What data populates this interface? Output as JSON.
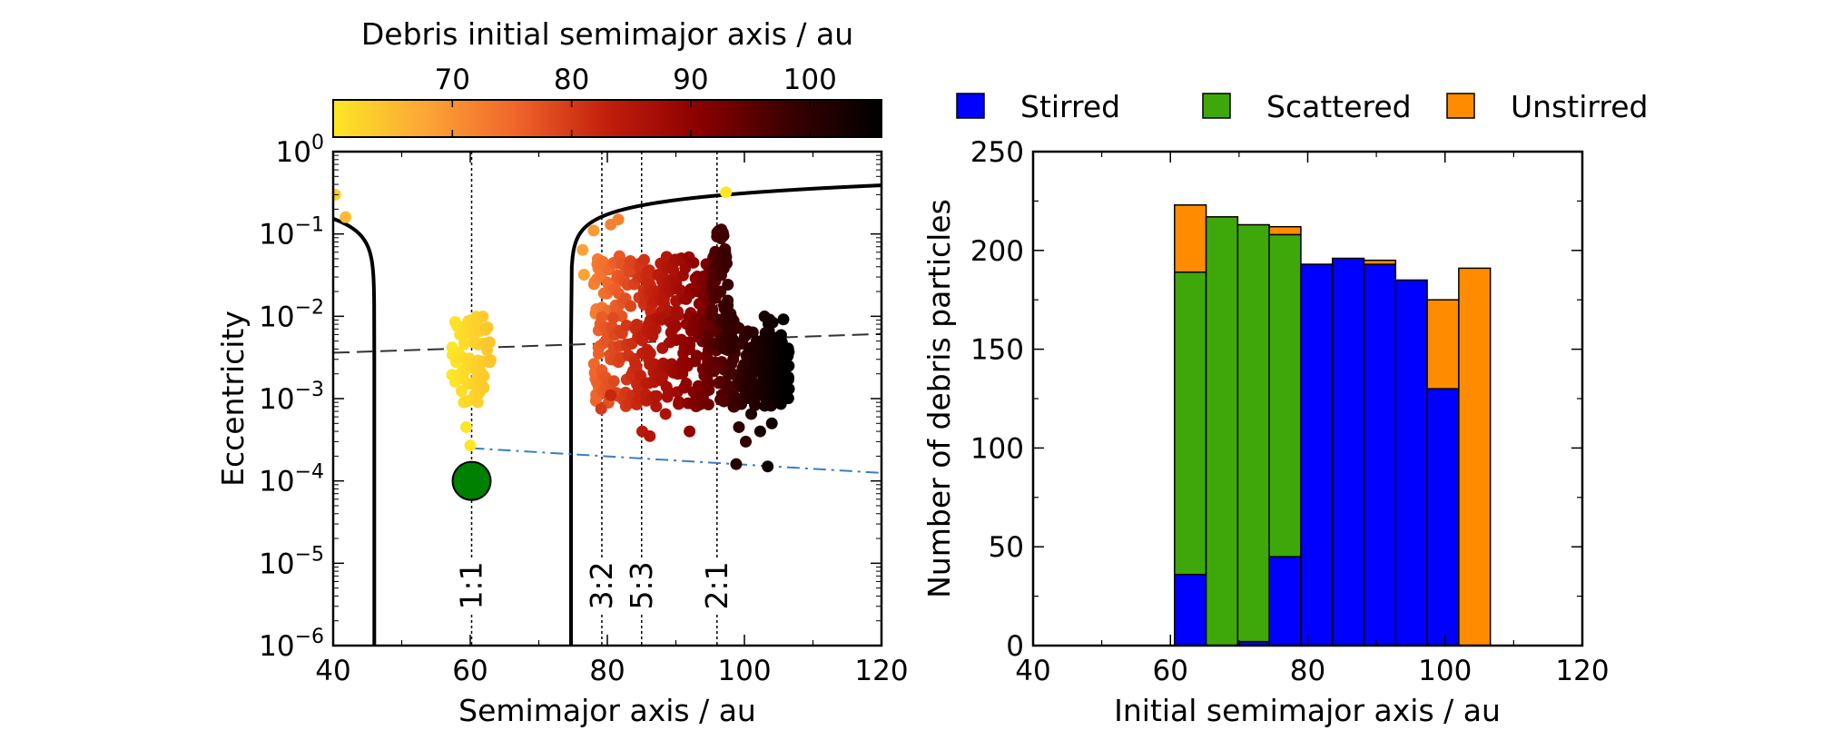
{
  "chart_data": [
    {
      "type": "scatter",
      "xlabel": "Semimajor axis / au",
      "ylabel": "Eccentricity",
      "xlim": [
        40,
        120
      ],
      "ylim": [
        1e-06,
        1
      ],
      "yscale": "log",
      "grid": false,
      "x_ticks": [
        {
          "value": 40,
          "label": "40"
        },
        {
          "value": 60,
          "label": "60"
        },
        {
          "value": 80,
          "label": "80"
        },
        {
          "value": 100,
          "label": "100"
        },
        {
          "value": 120,
          "label": "120"
        }
      ],
      "y_ticks": [
        {
          "value": 1e-06,
          "base": "10",
          "exp": "−6"
        },
        {
          "value": 1e-05,
          "base": "10",
          "exp": "−5"
        },
        {
          "value": 0.0001,
          "base": "10",
          "exp": "−4"
        },
        {
          "value": 0.001,
          "base": "10",
          "exp": "−3"
        },
        {
          "value": 0.01,
          "base": "10",
          "exp": "−2"
        },
        {
          "value": 0.1,
          "base": "10",
          "exp": "−1"
        },
        {
          "value": 1,
          "base": "10",
          "exp": "0"
        }
      ],
      "colorbar": {
        "label": "Debris initial semimajor axis / au",
        "range": [
          60,
          106
        ],
        "colormap": [
          "#fde725",
          "#fca636",
          "#f0652b",
          "#c21e0c",
          "#8b0000",
          "#3a0000",
          "#000000"
        ],
        "ticks": [
          {
            "value": 70,
            "label": "70"
          },
          {
            "value": 80,
            "label": "80"
          },
          {
            "value": 90,
            "label": "90"
          },
          {
            "value": 100,
            "label": "100"
          }
        ]
      },
      "resonances": [
        {
          "label": "1:1",
          "a": 60.2
        },
        {
          "label": "3:2",
          "a": 79.2
        },
        {
          "label": "5:3",
          "a": 85.0
        },
        {
          "label": "2:1",
          "a": 96.0
        }
      ],
      "planet": {
        "a": 60.2,
        "e": 0.0001,
        "color": "#008000"
      },
      "boundary_curves": {
        "left_asymptote": 46,
        "right_asymptote": 74.7,
        "color": "#000000"
      },
      "dashed_line": [
        [
          40,
          0.0036
        ],
        [
          120,
          0.0061
        ]
      ],
      "dashdot_line": {
        "points": [
          [
            60.2,
            0.00025
          ],
          [
            120,
            0.000125
          ]
        ],
        "color": "#3b7dbf"
      },
      "scatter_groups": [
        {
          "name": "trojans",
          "a_range": [
            57.3,
            63
          ],
          "e_log_range": [
            -3.05,
            -2.0
          ],
          "count": 80,
          "color_a": [
            60,
            64
          ]
        },
        {
          "name": "cloud_lower",
          "a_range": [
            78,
            106
          ],
          "e_log_range": [
            -3.1,
            -2.0
          ],
          "count": 320,
          "color_a": [
            75,
            106
          ]
        },
        {
          "name": "cloud_upper",
          "a_range": [
            78,
            96
          ],
          "e_log_range": [
            -2.0,
            -1.25
          ],
          "count": 160,
          "color_a": [
            72,
            94
          ]
        },
        {
          "name": "spike",
          "a_range": [
            94,
            98.5
          ],
          "e_log_range": [
            -2.4,
            -0.9
          ],
          "count": 70,
          "color_a": [
            94,
            100
          ]
        },
        {
          "name": "dense_right",
          "a_range": [
            100,
            106.5
          ],
          "e_log_range": [
            -3.0,
            -2.3
          ],
          "count": 150,
          "color_a": [
            100,
            106
          ]
        }
      ],
      "scatter_points": [
        {
          "a": 40.3,
          "e": 0.3,
          "c": 63
        },
        {
          "a": 41.8,
          "e": 0.16,
          "c": 65
        },
        {
          "a": 97.3,
          "e": 0.32,
          "c": 60
        },
        {
          "a": 60.0,
          "e": 0.00027,
          "c": 60
        },
        {
          "a": 59.4,
          "e": 0.00045,
          "c": 60
        },
        {
          "a": 76.6,
          "e": 0.032,
          "c": 68
        },
        {
          "a": 76.4,
          "e": 0.064,
          "c": 68
        },
        {
          "a": 78.0,
          "e": 0.11,
          "c": 69
        },
        {
          "a": 80.5,
          "e": 0.13,
          "c": 72
        },
        {
          "a": 81.6,
          "e": 0.15,
          "c": 72
        },
        {
          "a": 79.1,
          "e": 0.00075,
          "c": 80
        },
        {
          "a": 80.5,
          "e": 0.0011,
          "c": 82
        },
        {
          "a": 85.1,
          "e": 0.0004,
          "c": 84
        },
        {
          "a": 86.2,
          "e": 0.00035,
          "c": 85
        },
        {
          "a": 88.5,
          "e": 0.00065,
          "c": 86
        },
        {
          "a": 90.2,
          "e": 0.0012,
          "c": 88
        },
        {
          "a": 92.0,
          "e": 0.0004,
          "c": 90
        },
        {
          "a": 98.4,
          "e": 0.0008,
          "c": 98
        },
        {
          "a": 99.2,
          "e": 0.00045,
          "c": 100
        },
        {
          "a": 100.2,
          "e": 0.0003,
          "c": 100
        },
        {
          "a": 98.8,
          "e": 0.00016,
          "c": 101
        },
        {
          "a": 103.4,
          "e": 0.00015,
          "c": 104
        },
        {
          "a": 101.0,
          "e": 0.00065,
          "c": 102
        },
        {
          "a": 102.3,
          "e": 0.0004,
          "c": 103
        },
        {
          "a": 104.0,
          "e": 0.0005,
          "c": 104
        }
      ]
    },
    {
      "type": "bar",
      "stacked": true,
      "xlabel": "Initial semimajor axis / au",
      "ylabel": "Number of debris particles",
      "xlim": [
        40,
        120
      ],
      "ylim": [
        0,
        250
      ],
      "grid": false,
      "legend_position": "top",
      "x_ticks": [
        {
          "value": 40,
          "label": "40"
        },
        {
          "value": 60,
          "label": "60"
        },
        {
          "value": 80,
          "label": "80"
        },
        {
          "value": 100,
          "label": "100"
        },
        {
          "value": 120,
          "label": "120"
        }
      ],
      "y_ticks": [
        {
          "value": 0,
          "label": "0"
        },
        {
          "value": 50,
          "label": "50"
        },
        {
          "value": 100,
          "label": "100"
        },
        {
          "value": 150,
          "label": "150"
        },
        {
          "value": 200,
          "label": "200"
        },
        {
          "value": 250,
          "label": "250"
        }
      ],
      "bin_edges": [
        60.6,
        65.2,
        69.8,
        74.4,
        79.0,
        83.6,
        88.2,
        92.8,
        97.4,
        102.0,
        106.6
      ],
      "series": [
        {
          "name": "Stirred",
          "color": "#0000ff",
          "values": [
            36,
            0,
            2,
            45,
            193,
            196,
            193,
            185,
            130,
            0
          ]
        },
        {
          "name": "Scattered",
          "color": "#3ea80a",
          "values": [
            153,
            217,
            211,
            163,
            0,
            0,
            0,
            0,
            0,
            0
          ]
        },
        {
          "name": "Unstirred",
          "color": "#ff8c00",
          "values": [
            34,
            0,
            0,
            4,
            0,
            0,
            2,
            0,
            45,
            191
          ]
        }
      ]
    }
  ]
}
